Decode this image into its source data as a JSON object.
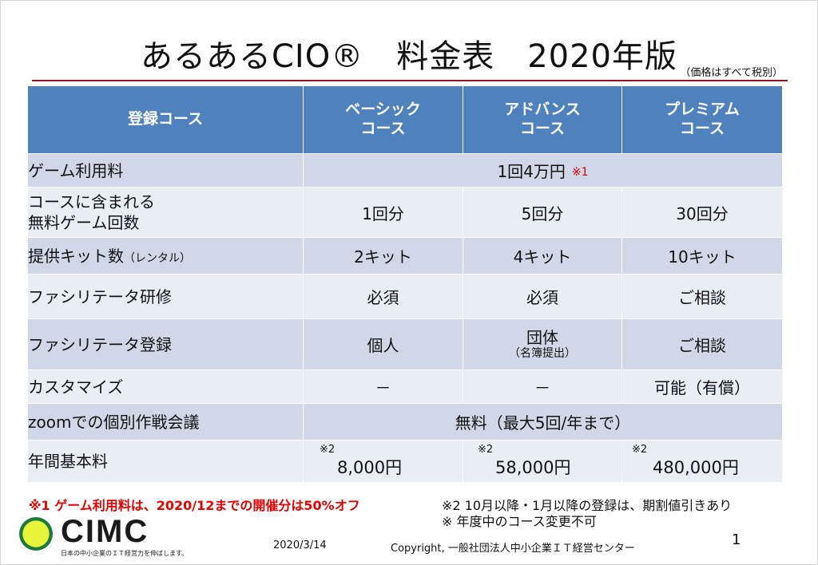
{
  "title": "あるあるCIO®　料金表　2020年版",
  "price_note": "（価格はすべて税別）",
  "table": {
    "headers": [
      "登録コース",
      "ベーシック\nコース",
      "アドバンス\nコース",
      "プレミアム\nコース"
    ],
    "rows": [
      {
        "label": "ゲーム利用料",
        "merged": "1回4万円",
        "mark": "※1"
      },
      {
        "label": "コースに含まれる\n無料ゲーム回数",
        "values": [
          "1回分",
          "5回分",
          "30回分"
        ]
      },
      {
        "label": "提供キット数",
        "label_sub": "（レンタル）",
        "values": [
          "2キット",
          "4キット",
          "10キット"
        ]
      },
      {
        "label": "ファシリテータ研修",
        "values": [
          "必須",
          "必須",
          "ご相談"
        ]
      },
      {
        "label": "ファシリテータ登録",
        "values": [
          "個人",
          "団体",
          "ご相談"
        ],
        "value_sub": "（名簿提出）"
      },
      {
        "label": "カスタマイズ",
        "values": [
          "－",
          "－",
          "可能（有償）"
        ]
      },
      {
        "label": "zoomでの個別作戦会議",
        "merged": "無料（最大5回/年まで）"
      },
      {
        "label": "年間基本料",
        "note": "※2",
        "values": [
          "8,000円",
          "58,000円",
          "480,000円"
        ]
      }
    ]
  },
  "footnotes": {
    "note1": "※1 ゲーム利用料は、2020/12までの開催分は50%オフ",
    "note2": "※2 10月以降・1月以降の登録は、期割値引きあり",
    "note3": "※ 年度中のコース変更不可"
  },
  "footer": {
    "logo": "CIMC",
    "logo_tagline": "日本の中小企業のＩＴ経営力を伸ばします。",
    "date": "2020/3/14",
    "copyright": "Copyright, 一般社団法人中小企業ＩＴ経営センター",
    "page_number": "1"
  },
  "colors": {
    "header_bg": "#4f81bd",
    "row_dark": "#d0d8e8",
    "row_light": "#e9edf4",
    "accent_red": "#e00000",
    "rule": "#8b1a1a"
  }
}
